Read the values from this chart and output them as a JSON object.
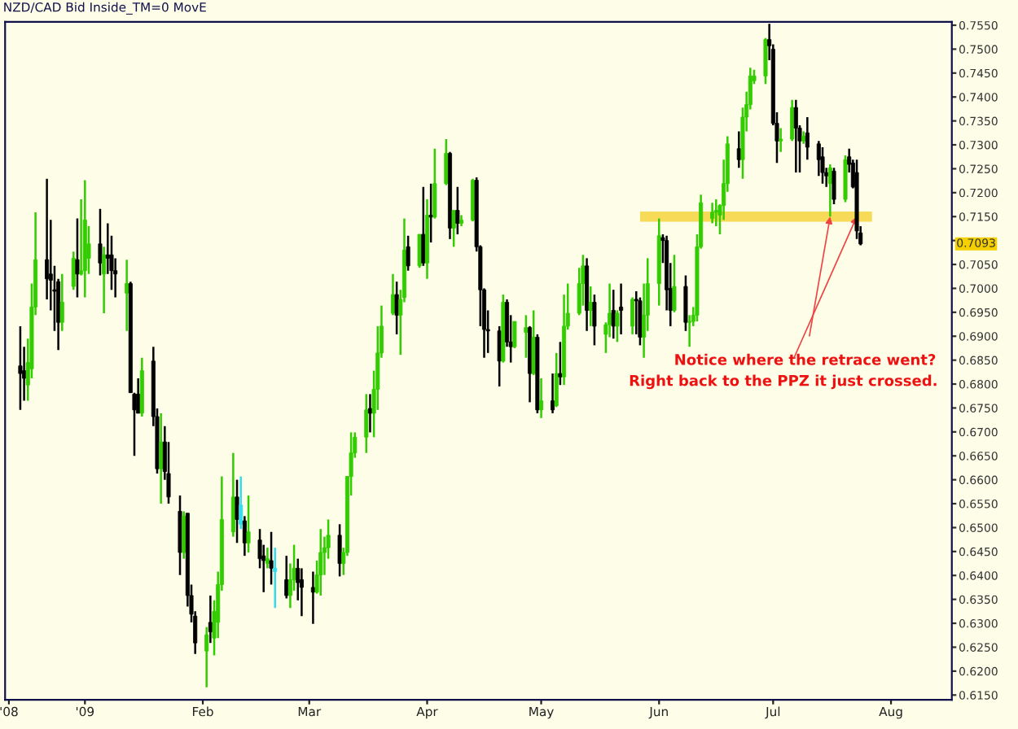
{
  "chart_data": {
    "type": "candlestick",
    "title": "NZD/CAD Bid Inside_TM=0 MovE",
    "x": [
      "2008-12-15",
      "2008-12-16",
      "2008-12-17",
      "2008-12-18",
      "2008-12-19",
      "2008-12-22",
      "2008-12-23",
      "2008-12-24",
      "2008-12-25",
      "2008-12-26",
      "2008-12-29",
      "2008-12-30",
      "2008-12-31",
      "2009-01-01",
      "2009-01-02",
      "2009-01-05",
      "2009-01-06",
      "2009-01-07",
      "2009-01-08",
      "2009-01-09",
      "2009-01-12",
      "2009-01-13",
      "2009-01-14",
      "2009-01-15",
      "2009-01-16",
      "2009-01-19",
      "2009-01-20",
      "2009-01-21",
      "2009-01-22",
      "2009-01-23",
      "2009-01-26",
      "2009-01-27",
      "2009-01-28",
      "2009-01-29",
      "2009-01-30",
      "2009-02-02",
      "2009-02-03",
      "2009-02-04",
      "2009-02-05",
      "2009-02-06",
      "2009-02-09",
      "2009-02-10",
      "2009-02-11",
      "2009-02-12",
      "2009-02-13",
      "2009-02-16",
      "2009-02-17",
      "2009-02-18",
      "2009-02-19",
      "2009-02-20",
      "2009-02-23",
      "2009-02-24",
      "2009-02-25",
      "2009-02-26",
      "2009-02-27",
      "2009-03-02",
      "2009-03-03",
      "2009-03-04",
      "2009-03-05",
      "2009-03-06",
      "2009-03-09",
      "2009-03-10",
      "2009-03-11",
      "2009-03-12",
      "2009-03-13",
      "2009-03-16",
      "2009-03-17",
      "2009-03-18",
      "2009-03-19",
      "2009-03-20",
      "2009-03-23",
      "2009-03-24",
      "2009-03-25",
      "2009-03-26",
      "2009-03-27",
      "2009-03-30",
      "2009-03-31",
      "2009-04-01",
      "2009-04-02",
      "2009-04-03",
      "2009-04-06",
      "2009-04-07",
      "2009-04-08",
      "2009-04-09",
      "2009-04-10",
      "2009-04-13",
      "2009-04-14",
      "2009-04-15",
      "2009-04-16",
      "2009-04-17",
      "2009-04-20",
      "2009-04-21",
      "2009-04-22",
      "2009-04-23",
      "2009-04-24",
      "2009-04-27",
      "2009-04-28",
      "2009-04-29",
      "2009-04-30",
      "2009-05-01",
      "2009-05-04",
      "2009-05-05",
      "2009-05-06",
      "2009-05-07",
      "2009-05-08",
      "2009-05-11",
      "2009-05-12",
      "2009-05-13",
      "2009-05-14",
      "2009-05-15",
      "2009-05-18",
      "2009-05-19",
      "2009-05-20",
      "2009-05-21",
      "2009-05-22",
      "2009-05-25",
      "2009-05-26",
      "2009-05-27",
      "2009-05-28",
      "2009-05-29",
      "2009-06-01",
      "2009-06-02",
      "2009-06-03",
      "2009-06-04",
      "2009-06-05",
      "2009-06-08",
      "2009-06-09",
      "2009-06-10",
      "2009-06-11",
      "2009-06-12",
      "2009-06-15",
      "2009-06-16",
      "2009-06-17",
      "2009-06-18",
      "2009-06-19",
      "2009-06-22",
      "2009-06-23",
      "2009-06-24",
      "2009-06-25",
      "2009-06-26",
      "2009-06-29",
      "2009-06-30",
      "2009-07-01",
      "2009-07-02",
      "2009-07-03",
      "2009-07-06",
      "2009-07-07",
      "2009-07-08",
      "2009-07-09",
      "2009-07-10",
      "2009-07-13",
      "2009-07-14",
      "2009-07-15",
      "2009-07-16",
      "2009-07-17",
      "2009-07-20",
      "2009-07-21",
      "2009-07-22",
      "2009-07-23",
      "2009-07-24"
    ],
    "ohlc": [
      [
        0.6838,
        0.6921,
        0.6746,
        0.6822
      ],
      [
        0.6828,
        0.6878,
        0.6765,
        0.6812
      ],
      [
        0.6798,
        0.6895,
        0.6765,
        0.6845
      ],
      [
        0.6832,
        0.701,
        0.6812,
        0.6961
      ],
      [
        0.6961,
        0.7159,
        0.6944,
        0.706
      ],
      [
        0.706,
        0.7229,
        0.6977,
        0.702
      ],
      [
        0.703,
        0.7143,
        0.6954,
        0.7017
      ],
      [
        0.6997,
        0.7047,
        0.6911,
        0.6994
      ],
      [
        0.7014,
        0.702,
        0.6871,
        0.6929
      ],
      [
        0.6929,
        0.703,
        0.6911,
        0.6971
      ],
      [
        0.7004,
        0.7077,
        0.6997,
        0.7063
      ],
      [
        0.706,
        0.7146,
        0.6981,
        0.703
      ],
      [
        0.703,
        0.7186,
        0.7027,
        0.7037
      ],
      [
        0.7037,
        0.7226,
        0.6981,
        0.7143
      ],
      [
        0.7063,
        0.713,
        0.703,
        0.7093
      ],
      [
        0.7093,
        0.7166,
        0.7027,
        0.7053
      ],
      [
        0.703,
        0.7087,
        0.6948,
        0.707
      ],
      [
        0.707,
        0.7136,
        0.703,
        0.7063
      ],
      [
        0.707,
        0.711,
        0.6997,
        0.7037
      ],
      [
        0.7037,
        0.7063,
        0.6981,
        0.703
      ],
      [
        0.699,
        0.706,
        0.6911,
        0.701
      ],
      [
        0.701,
        0.7014,
        0.6782,
        0.6782
      ],
      [
        0.6779,
        0.6782,
        0.665,
        0.6746
      ],
      [
        0.6779,
        0.6812,
        0.6739,
        0.6739
      ],
      [
        0.6739,
        0.6855,
        0.6732,
        0.6828
      ],
      [
        0.6848,
        0.6878,
        0.6712,
        0.6732
      ],
      [
        0.6732,
        0.6749,
        0.6613,
        0.6623
      ],
      [
        0.6623,
        0.6739,
        0.655,
        0.6679
      ],
      [
        0.6679,
        0.6712,
        0.66,
        0.6617
      ],
      [
        0.6613,
        0.6679,
        0.655,
        0.6564
      ],
      [
        0.6534,
        0.6567,
        0.6401,
        0.6448
      ],
      [
        0.6448,
        0.6534,
        0.6435,
        0.6524
      ],
      [
        0.653,
        0.653,
        0.6335,
        0.6358
      ],
      [
        0.6358,
        0.6381,
        0.6302,
        0.6319
      ],
      [
        0.6315,
        0.6325,
        0.6236,
        0.6259
      ],
      [
        0.6242,
        0.6292,
        0.6166,
        0.6276
      ],
      [
        0.6302,
        0.6358,
        0.6259,
        0.6282
      ],
      [
        0.6269,
        0.6348,
        0.6233,
        0.6325
      ],
      [
        0.6302,
        0.6408,
        0.6269,
        0.6381
      ],
      [
        0.6381,
        0.6607,
        0.6368,
        0.6517
      ],
      [
        0.6491,
        0.6656,
        0.6481,
        0.6564
      ],
      [
        0.6564,
        0.66,
        0.6468,
        0.6517
      ],
      [
        0.6547,
        0.6607,
        0.6497,
        0.6507
      ],
      [
        0.6514,
        0.6524,
        0.6441,
        0.6468
      ],
      [
        0.6468,
        0.6567,
        0.6448,
        0.6491
      ],
      [
        0.6474,
        0.6497,
        0.6415,
        0.6435
      ],
      [
        0.6441,
        0.6464,
        0.6365,
        0.6431
      ],
      [
        0.6425,
        0.6458,
        0.6415,
        0.6435
      ],
      [
        0.6431,
        0.6491,
        0.6381,
        0.6415
      ],
      [
        0.6415,
        0.6458,
        0.6332,
        0.6408
      ],
      [
        0.6391,
        0.6441,
        0.6352,
        0.6358
      ],
      [
        0.6358,
        0.6425,
        0.6332,
        0.6391
      ],
      [
        0.6391,
        0.6464,
        0.6368,
        0.6415
      ],
      [
        0.6415,
        0.6435,
        0.6348,
        0.6385
      ],
      [
        0.6391,
        0.6415,
        0.6315,
        0.6375
      ],
      [
        0.6375,
        0.6408,
        0.6299,
        0.6365
      ],
      [
        0.6365,
        0.6431,
        0.6362,
        0.6401
      ],
      [
        0.6401,
        0.6497,
        0.6358,
        0.6448
      ],
      [
        0.6448,
        0.6481,
        0.6401,
        0.6458
      ],
      [
        0.6458,
        0.6517,
        0.6435,
        0.6484
      ],
      [
        0.6484,
        0.6507,
        0.6398,
        0.6425
      ],
      [
        0.6425,
        0.6458,
        0.6401,
        0.6448
      ],
      [
        0.6448,
        0.6607,
        0.6441,
        0.6607
      ],
      [
        0.6607,
        0.6699,
        0.6567,
        0.6656
      ],
      [
        0.6656,
        0.6699,
        0.6646,
        0.6689
      ],
      [
        0.6689,
        0.6779,
        0.6656,
        0.6746
      ],
      [
        0.6749,
        0.6779,
        0.6699,
        0.6739
      ],
      [
        0.6739,
        0.6828,
        0.6689,
        0.6789
      ],
      [
        0.6789,
        0.6921,
        0.6746,
        0.6865
      ],
      [
        0.6865,
        0.6964,
        0.6855,
        0.6921
      ],
      [
        0.6948,
        0.703,
        0.6944,
        0.6987
      ],
      [
        0.6987,
        0.7014,
        0.6904,
        0.6944
      ],
      [
        0.6944,
        0.6997,
        0.6861,
        0.6977
      ],
      [
        0.6981,
        0.7146,
        0.6971,
        0.708
      ],
      [
        0.7087,
        0.711,
        0.7037,
        0.7047
      ],
      [
        0.7047,
        0.7113,
        0.7043,
        0.7113
      ],
      [
        0.7113,
        0.7212,
        0.7047,
        0.7053
      ],
      [
        0.7053,
        0.7186,
        0.702,
        0.7153
      ],
      [
        0.7153,
        0.7219,
        0.7096,
        0.7149
      ],
      [
        0.7149,
        0.7292,
        0.7146,
        0.7219
      ],
      [
        0.7219,
        0.7312,
        0.7216,
        0.7282
      ],
      [
        0.7282,
        0.7285,
        0.7103,
        0.7126
      ],
      [
        0.7126,
        0.7163,
        0.7087,
        0.7163
      ],
      [
        0.7163,
        0.7212,
        0.7113,
        0.7136
      ],
      [
        0.7136,
        0.7153,
        0.713,
        0.7143
      ],
      [
        0.7143,
        0.7229,
        0.714,
        0.7226
      ],
      [
        0.7226,
        0.7232,
        0.7077,
        0.7087
      ],
      [
        0.7087,
        0.709,
        0.6921,
        0.6997
      ],
      [
        0.6997,
        0.7,
        0.6855,
        0.6914
      ],
      [
        0.6914,
        0.6954,
        0.6865,
        0.6911
      ],
      [
        0.6911,
        0.6921,
        0.6795,
        0.6848
      ],
      [
        0.6848,
        0.6987,
        0.6845,
        0.6971
      ],
      [
        0.6971,
        0.6977,
        0.6878,
        0.6888
      ],
      [
        0.6888,
        0.6944,
        0.6845,
        0.6878
      ],
      [
        0.6878,
        0.6931,
        0.6875,
        0.6931
      ],
      [
        0.6908,
        0.6944,
        0.6855,
        0.6918
      ],
      [
        0.6918,
        0.6921,
        0.6762,
        0.6822
      ],
      [
        0.6822,
        0.6954,
        0.6819,
        0.6898
      ],
      [
        0.6898,
        0.6904,
        0.6739,
        0.6746
      ],
      [
        0.6746,
        0.6812,
        0.6729,
        0.6765
      ],
      [
        0.6765,
        0.6822,
        0.6739,
        0.6746
      ],
      [
        0.6755,
        0.6865,
        0.6752,
        0.6822
      ],
      [
        0.6822,
        0.6888,
        0.6798,
        0.6815
      ],
      [
        0.6815,
        0.6987,
        0.6798,
        0.6921
      ],
      [
        0.6921,
        0.701,
        0.6914,
        0.6948
      ],
      [
        0.6948,
        0.7043,
        0.6944,
        0.701
      ],
      [
        0.701,
        0.707,
        0.6964,
        0.7047
      ],
      [
        0.7047,
        0.7063,
        0.6911,
        0.6954
      ],
      [
        0.6954,
        0.7004,
        0.6921,
        0.6971
      ],
      [
        0.6971,
        0.6987,
        0.6881,
        0.6921
      ],
      [
        0.6904,
        0.6929,
        0.6865,
        0.6924
      ],
      [
        0.6924,
        0.701,
        0.6898,
        0.6948
      ],
      [
        0.6954,
        0.6997,
        0.6895,
        0.6921
      ],
      [
        0.6921,
        0.6954,
        0.6888,
        0.6948
      ],
      [
        0.6961,
        0.701,
        0.6904,
        0.6954
      ],
      [
        0.6921,
        0.6981,
        0.6904,
        0.6977
      ],
      [
        0.6977,
        0.6994,
        0.6904,
        0.6974
      ],
      [
        0.6974,
        0.6981,
        0.6881,
        0.6898
      ],
      [
        0.6898,
        0.701,
        0.6855,
        0.6944
      ],
      [
        0.6944,
        0.7063,
        0.6911,
        0.701
      ],
      [
        0.701,
        0.7146,
        0.6964,
        0.711
      ],
      [
        0.7106,
        0.7113,
        0.7053,
        0.71
      ],
      [
        0.71,
        0.711,
        0.6954,
        0.6997
      ],
      [
        0.7,
        0.7053,
        0.6921,
        0.6954
      ],
      [
        0.6954,
        0.707,
        0.695,
        0.7004
      ],
      [
        0.7004,
        0.7027,
        0.6911,
        0.6929
      ],
      [
        0.6929,
        0.6944,
        0.6878,
        0.6931
      ],
      [
        0.6931,
        0.6961,
        0.6921,
        0.6944
      ],
      [
        0.6944,
        0.7113,
        0.6931,
        0.7087
      ],
      [
        0.7087,
        0.7196,
        0.7083,
        0.7179
      ],
      [
        0.7146,
        0.7179,
        0.7136,
        0.7159
      ],
      [
        0.7159,
        0.7186,
        0.713,
        0.7163
      ],
      [
        0.7153,
        0.7176,
        0.7113,
        0.7173
      ],
      [
        0.7173,
        0.7269,
        0.7143,
        0.7219
      ],
      [
        0.7219,
        0.7318,
        0.7202,
        0.7302
      ],
      [
        0.7292,
        0.7328,
        0.7252,
        0.7269
      ],
      [
        0.7269,
        0.7378,
        0.7229,
        0.7358
      ],
      [
        0.7358,
        0.7411,
        0.7328,
        0.7384
      ],
      [
        0.7384,
        0.7461,
        0.7374,
        0.7444
      ],
      [
        0.7434,
        0.7457,
        0.7427,
        0.7444
      ],
      [
        0.7444,
        0.7523,
        0.7427,
        0.752
      ],
      [
        0.752,
        0.7553,
        0.7477,
        0.7507
      ],
      [
        0.75,
        0.751,
        0.7341,
        0.7345
      ],
      [
        0.7345,
        0.7368,
        0.7262,
        0.7308
      ],
      [
        0.7308,
        0.7335,
        0.7285,
        0.7312
      ],
      [
        0.7312,
        0.7394,
        0.7308,
        0.7378
      ],
      [
        0.7378,
        0.7394,
        0.7242,
        0.7335
      ],
      [
        0.7335,
        0.7341,
        0.7242,
        0.7308
      ],
      [
        0.7308,
        0.7328,
        0.7302,
        0.7318
      ],
      [
        0.7325,
        0.7358,
        0.7269,
        0.7295
      ],
      [
        0.7302,
        0.7308,
        0.7235,
        0.7269
      ],
      [
        0.7275,
        0.7295,
        0.7219,
        0.7242
      ],
      [
        0.7242,
        0.7252,
        0.7212,
        0.7235
      ],
      [
        0.7219,
        0.7259,
        0.715,
        0.7252
      ],
      [
        0.7245,
        0.7252,
        0.7176,
        0.7186
      ],
      [
        0.7186,
        0.7278,
        0.718,
        0.7269
      ],
      [
        0.7275,
        0.7292,
        0.7242,
        0.7259
      ],
      [
        0.7262,
        0.7269,
        0.7209,
        0.7212
      ],
      [
        0.7242,
        0.7269,
        0.7103,
        0.712
      ],
      [
        0.7116,
        0.713,
        0.709,
        0.7093
      ]
    ],
    "colors": [
      "#000000",
      "#000000",
      "#33cc00",
      "#33cc00",
      "#33cc00",
      "#000000",
      "#000000",
      "#000000",
      "#000000",
      "#33cc00",
      "#33cc00",
      "#000000",
      "#33cc00",
      "#33cc00",
      "#33cc00",
      "#000000",
      "#33cc00",
      "#000000",
      "#000000",
      "#000000",
      "#33cc00",
      "#000000",
      "#000000",
      "#000000",
      "#33cc00",
      "#000000",
      "#000000",
      "#33cc00",
      "#000000",
      "#000000",
      "#000000",
      "#33cc00",
      "#000000",
      "#000000",
      "#000000",
      "#33cc00",
      "#000000",
      "#33cc00",
      "#33cc00",
      "#33cc00",
      "#33cc00",
      "#000000",
      "#33ddee",
      "#000000",
      "#33cc00",
      "#000000",
      "#000000",
      "#33cc00",
      "#000000",
      "#33ddee",
      "#000000",
      "#33cc00",
      "#33cc00",
      "#000000",
      "#000000",
      "#000000",
      "#33cc00",
      "#33cc00",
      "#33cc00",
      "#33cc00",
      "#000000",
      "#33cc00",
      "#33cc00",
      "#33cc00",
      "#33cc00",
      "#33cc00",
      "#000000",
      "#33cc00",
      "#33cc00",
      "#33cc00",
      "#33cc00",
      "#000000",
      "#33cc00",
      "#33cc00",
      "#000000",
      "#33cc00",
      "#000000",
      "#33cc00",
      "#000000",
      "#33cc00",
      "#33cc00",
      "#000000",
      "#33cc00",
      "#000000",
      "#33cc00",
      "#33cc00",
      "#000000",
      "#000000",
      "#000000",
      "#000000",
      "#000000",
      "#33cc00",
      "#000000",
      "#000000",
      "#33cc00",
      "#33cc00",
      "#000000",
      "#33cc00",
      "#000000",
      "#33cc00",
      "#000000",
      "#33cc00",
      "#000000",
      "#33cc00",
      "#33cc00",
      "#33cc00",
      "#33cc00",
      "#000000",
      "#33cc00",
      "#000000",
      "#33cc00",
      "#33cc00",
      "#000000",
      "#33cc00",
      "#000000",
      "#33cc00",
      "#000000",
      "#000000",
      "#33cc00",
      "#33cc00",
      "#33cc00",
      "#000000",
      "#000000",
      "#000000",
      "#33cc00",
      "#000000",
      "#33cc00",
      "#33cc00",
      "#33cc00",
      "#33cc00",
      "#33cc00",
      "#33cc00",
      "#33cc00",
      "#33cc00",
      "#33cc00",
      "#000000",
      "#33cc00",
      "#33cc00",
      "#33cc00",
      "#33cc00",
      "#33cc00",
      "#000000",
      "#000000",
      "#000000",
      "#33cc00",
      "#33cc00",
      "#000000",
      "#000000",
      "#33cc00",
      "#000000",
      "#000000",
      "#000000",
      "#000000",
      "#33cc00",
      "#000000",
      "#33cc00",
      "#000000",
      "#000000",
      "#000000",
      "#000000"
    ],
    "series": [
      {
        "type": "line",
        "x": [
          "2009-05-27",
          "2009-07-27"
        ],
        "values": [
          0.715,
          0.715
        ],
        "color": "#f7d340"
      }
    ],
    "xlim": [
      "2008-12-11",
      "2009-08-17"
    ],
    "xticks": [
      {
        "value": "2008-12-12",
        "label": "'08"
      },
      {
        "value": "2009-01-01",
        "label": "'09"
      },
      {
        "value": "2009-02-01",
        "label": "Feb"
      },
      {
        "value": "2009-03-01",
        "label": "Mar"
      },
      {
        "value": "2009-04-01",
        "label": "Apr"
      },
      {
        "value": "2009-05-01",
        "label": "May"
      },
      {
        "value": "2009-06-01",
        "label": "Jun"
      },
      {
        "value": "2009-07-01",
        "label": "Jul"
      },
      {
        "value": "2009-08-01",
        "label": "Aug"
      }
    ],
    "ylim": [
      0.614,
      0.7557
    ],
    "yticks": [
      {
        "value": 0.615,
        "label": "0.6150"
      },
      {
        "value": 0.62,
        "label": "0.6200"
      },
      {
        "value": 0.625,
        "label": "0.6250"
      },
      {
        "value": 0.63,
        "label": "0.6300"
      },
      {
        "value": 0.635,
        "label": "0.6350"
      },
      {
        "value": 0.64,
        "label": "0.6400"
      },
      {
        "value": 0.645,
        "label": "0.6450"
      },
      {
        "value": 0.65,
        "label": "0.6500"
      },
      {
        "value": 0.655,
        "label": "0.6550"
      },
      {
        "value": 0.66,
        "label": "0.6600"
      },
      {
        "value": 0.665,
        "label": "0.6650"
      },
      {
        "value": 0.67,
        "label": "0.6700"
      },
      {
        "value": 0.675,
        "label": "0.6750"
      },
      {
        "value": 0.68,
        "label": "0.6800"
      },
      {
        "value": 0.685,
        "label": "0.6850"
      },
      {
        "value": 0.69,
        "label": "0.6900"
      },
      {
        "value": 0.695,
        "label": "0.6950"
      },
      {
        "value": 0.7,
        "label": "0.7000"
      },
      {
        "value": 0.705,
        "label": "0.7050"
      },
      {
        "value": 0.71,
        "label": null
      },
      {
        "value": 0.715,
        "label": "0.7150"
      },
      {
        "value": 0.72,
        "label": "0.7200"
      },
      {
        "value": 0.725,
        "label": "0.7250"
      },
      {
        "value": 0.73,
        "label": "0.7300"
      },
      {
        "value": 0.735,
        "label": "0.7350"
      },
      {
        "value": 0.74,
        "label": "0.7400"
      },
      {
        "value": 0.745,
        "label": "0.7450"
      },
      {
        "value": 0.75,
        "label": "0.7500"
      },
      {
        "value": 0.755,
        "label": "0.7550"
      }
    ],
    "annotations": [
      {
        "text": "Notice where the retrace went?",
        "x": "2009-07-16",
        "y": 0.715
      },
      {
        "text": "Right back to the PPZ it just crossed.",
        "x": "2009-07-23",
        "y": 0.715
      },
      "0.7093"
    ]
  }
}
